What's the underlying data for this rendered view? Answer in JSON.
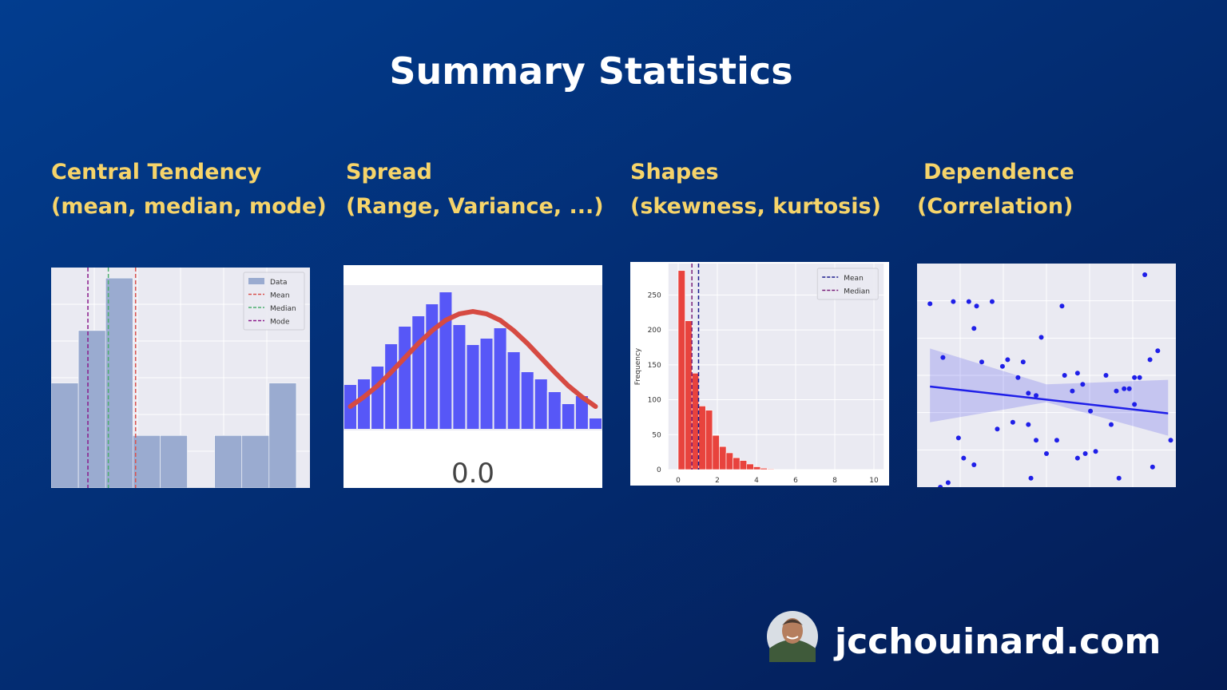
{
  "title": "Summary Statistics",
  "sections": [
    {
      "heading": "Central Tendency",
      "subheading": "(mean, median, mode)"
    },
    {
      "heading": "Spread",
      "subheading": "(Range, Variance, ...)"
    },
    {
      "heading": "Shapes",
      "subheading": "(skewness, kurtosis)"
    },
    {
      "heading": "Dependence",
      "subheading": "(Correlation)"
    }
  ],
  "chart_data": [
    {
      "type": "histogram",
      "name": "Data",
      "color": "#9aabd0",
      "bins": [
        0,
        1,
        2,
        3,
        4,
        5,
        6,
        7,
        8,
        9
      ],
      "values": [
        2,
        3,
        4,
        1,
        1,
        0,
        1,
        1,
        2
      ],
      "xlim": [
        0,
        9.5
      ],
      "ylim": [
        0,
        4.2
      ],
      "grid": true,
      "legend": "upper right",
      "vlines": [
        {
          "name": "Mean",
          "value": 3.1,
          "color": "#d9534f"
        },
        {
          "name": "Median",
          "value": 2.1,
          "color": "#4caf6e"
        },
        {
          "name": "Mode",
          "value": 1.35,
          "color": "#8b1a8b"
        }
      ]
    },
    {
      "type": "histogram",
      "color": "#5757f7",
      "curve_color": "#d64a42",
      "bins": [
        -2.85,
        -2.55,
        -2.25,
        -1.95,
        -1.65,
        -1.35,
        -1.05,
        -0.75,
        -0.45,
        -0.15,
        0.15,
        0.45,
        0.75,
        1.05,
        1.35,
        1.65,
        1.95,
        2.25,
        2.55,
        2.85
      ],
      "values": [
        57,
        64,
        80,
        108,
        130,
        143,
        158,
        173,
        132,
        107,
        115,
        128,
        98,
        73,
        64,
        48,
        33,
        43,
        15
      ],
      "curve": [
        29,
        41,
        55,
        72,
        90,
        108,
        124,
        137,
        145,
        148,
        145,
        137,
        124,
        108,
        90,
        72,
        55,
        41,
        29
      ],
      "xlim": [
        -2.85,
        2.85
      ],
      "ylim": [
        0,
        181
      ],
      "xticks": [
        {
          "value": 0,
          "label": "0.0"
        }
      ]
    },
    {
      "type": "histogram",
      "color": "#e8433d",
      "ylabel": "Frequency",
      "bins": [
        0,
        0.35,
        0.7,
        1.05,
        1.4,
        1.75,
        2.1,
        2.45,
        2.8,
        3.15,
        3.5,
        3.85,
        4.2,
        4.55,
        4.9
      ],
      "values": [
        285,
        213,
        138,
        91,
        85,
        49,
        33,
        24,
        17,
        13,
        8,
        4,
        2,
        1
      ],
      "xlim": [
        -0.5,
        10.5
      ],
      "ylim": [
        0,
        295
      ],
      "xticks": [
        0,
        2,
        4,
        6,
        8,
        10
      ],
      "yticks": [
        0,
        50,
        100,
        150,
        200,
        250
      ],
      "grid": true,
      "legend": "upper right",
      "vlines": [
        {
          "name": "Mean",
          "value": 1.04,
          "color": "#1a1a8c"
        },
        {
          "name": "Median",
          "value": 0.7,
          "color": "#7a1f7a"
        }
      ]
    },
    {
      "type": "scatter",
      "color": "#1f1fe8",
      "xlim": [
        0,
        100
      ],
      "ylim": [
        0,
        100
      ],
      "grid": true,
      "x": [
        5,
        10,
        14,
        20,
        23,
        22,
        29,
        25,
        33,
        35,
        39,
        41,
        48,
        56,
        43,
        46,
        57,
        60,
        62,
        64,
        73,
        77,
        80,
        84,
        86,
        82,
        90,
        93,
        88,
        16,
        18,
        22,
        31,
        37,
        43,
        46,
        50,
        54,
        62,
        65,
        69,
        67,
        75,
        78,
        84,
        91,
        98,
        12,
        9,
        44
      ],
      "y": [
        82,
        58,
        83,
        83,
        81,
        71,
        83,
        56,
        54,
        57,
        49,
        56,
        67,
        81,
        42,
        41,
        50,
        43,
        51,
        46,
        50,
        43,
        44,
        49,
        49,
        44,
        57,
        61,
        95,
        22,
        13,
        10,
        26,
        29,
        28,
        21,
        15,
        21,
        13,
        15,
        16,
        34,
        28,
        4,
        37,
        9,
        21,
        2,
        0,
        4
      ],
      "fit": {
        "x": [
          5,
          97
        ],
        "y": [
          45,
          33
        ]
      },
      "band": {
        "x": [
          5,
          50,
          97
        ],
        "upper": [
          62,
          46,
          48
        ],
        "lower": [
          29,
          38,
          23
        ]
      }
    }
  ],
  "footer": {
    "site": "jcchouinard.com"
  }
}
